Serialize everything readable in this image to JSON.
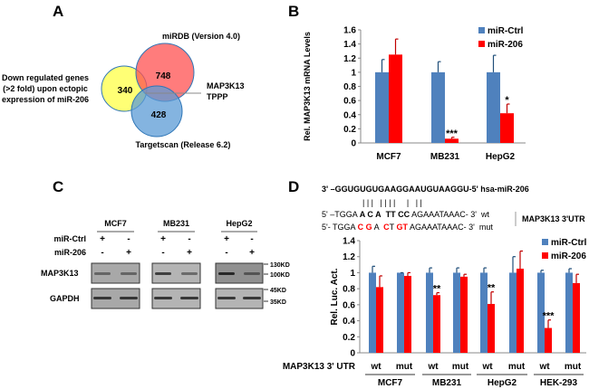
{
  "panels": {
    "a": "A",
    "b": "B",
    "c": "C",
    "d": "D"
  },
  "venn": {
    "sets": [
      {
        "label_lines": [
          "Down regulated genes",
          "(>2 fold) upon ectopic",
          "expression of miR-206"
        ],
        "count": "340",
        "color": "#ffff66"
      },
      {
        "label": "miRDB (Version 4.0)",
        "count": "748",
        "color": "#ff6666"
      },
      {
        "label": "Targetscan (Release 6.2)",
        "count": "428",
        "color": "#5b9bd5"
      }
    ],
    "intersection_genes": [
      "MAP3K13",
      "TPPP"
    ]
  },
  "blot": {
    "cells": [
      "MCF7",
      "MB231",
      "HepG2"
    ],
    "conditions": [
      {
        "label": "miR-Ctrl",
        "signs": [
          "+",
          "-"
        ]
      },
      {
        "label": "miR-206",
        "signs": [
          "-",
          "+"
        ]
      }
    ],
    "rows": [
      "MAP3K13",
      "GAPDH"
    ],
    "markers": [
      "130KD",
      "100KD",
      "45KD",
      "35KD"
    ]
  },
  "sequence": {
    "mirna": "3' –GGUGUGUGAAGGAAUGUAAGGU-5' hsa-miR-206",
    "pairing": "| | |   | | | |     |   | |",
    "wt": [
      {
        "t": "5' –TGGA ",
        "red": false,
        "bold": false
      },
      {
        "t": "A C A",
        "red": false,
        "bold": true
      },
      {
        "t": "  ",
        "red": false,
        "bold": false
      },
      {
        "t": "TT CC",
        "red": false,
        "bold": true
      },
      {
        "t": " AGAAATAAAC- 3'  wt",
        "red": false,
        "bold": false
      }
    ],
    "mut": [
      {
        "t": "5'- TGGA ",
        "red": false,
        "bold": false
      },
      {
        "t": "C G",
        "red": true,
        "bold": true
      },
      {
        "t": " A  ",
        "red": false,
        "bold": false
      },
      {
        "t": "C",
        "red": true,
        "bold": true
      },
      {
        "t": "T ",
        "red": false,
        "bold": false
      },
      {
        "t": "GT",
        "red": true,
        "bold": true
      },
      {
        "t": " AGAAATAAAC- 3'  mut",
        "red": false,
        "bold": false
      }
    ],
    "utr_label": "MAP3K13 3'UTR"
  },
  "chart_data": [
    {
      "type": "bar",
      "ylabel": "Rel. MAP3K13 mRNA Levels",
      "ylim": [
        0,
        1.6
      ],
      "yticks": [
        "0",
        "0.2",
        "0.4",
        "0.6",
        "0.8",
        "1",
        "1.2",
        "1.4",
        "1.6"
      ],
      "categories": [
        "MCF7",
        "MB231",
        "HepG2"
      ],
      "legend": "top-right",
      "series": [
        {
          "name": "miR-Ctrl",
          "color": "#4f81bd",
          "values": [
            1.0,
            1.0,
            1.0
          ],
          "errors": [
            0.18,
            0.15,
            0.24
          ]
        },
        {
          "name": "miR-206",
          "color": "#ff0000",
          "values": [
            1.25,
            0.06,
            0.42
          ],
          "errors": [
            0.22,
            0.02,
            0.13
          ]
        }
      ],
      "significance": [
        "",
        "***",
        "*"
      ]
    },
    {
      "type": "bar",
      "ylabel": "Rel. Luc. Act.",
      "ylim": [
        0,
        1.4
      ],
      "yticks": [
        "0",
        "0.2",
        "0.4",
        "0.6",
        "0.8",
        "1",
        "1.2",
        "1.4"
      ],
      "xrow_label": "MAP3K13 3' UTR",
      "categories": [
        "wt",
        "mut",
        "wt",
        "mut",
        "wt",
        "mut",
        "wt",
        "mut"
      ],
      "groups": [
        "MCF7",
        "MB231",
        "HepG2",
        "HEK-293"
      ],
      "legend": "top-right",
      "series": [
        {
          "name": "miR-Ctrl",
          "color": "#4f81bd",
          "values": [
            1,
            1,
            1,
            1,
            1,
            1,
            1,
            1
          ],
          "errors": [
            0.08,
            0.0,
            0.06,
            0.06,
            0.06,
            0.2,
            0.03,
            0.05
          ]
        },
        {
          "name": "miR-206",
          "color": "#ff0000",
          "values": [
            0.82,
            0.96,
            0.72,
            0.95,
            0.61,
            1.05,
            0.31,
            0.87
          ],
          "errors": [
            0.14,
            0.04,
            0.03,
            0.03,
            0.15,
            0.22,
            0.1,
            0.11
          ]
        }
      ],
      "significance": [
        "",
        "",
        "**",
        "",
        "**",
        "",
        "***",
        ""
      ]
    }
  ]
}
